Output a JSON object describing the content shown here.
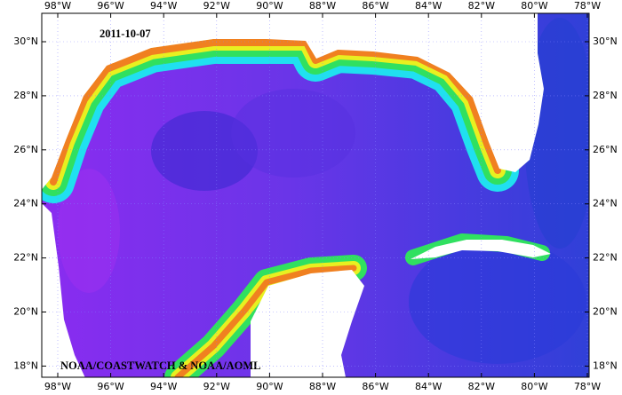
{
  "map": {
    "date": "2011-10-07",
    "credit": "NOAA/COASTWATCH & NOAA/AOML",
    "longitude_labels": [
      "98°W",
      "96°W",
      "94°W",
      "92°W",
      "90°W",
      "88°W",
      "86°W",
      "84°W",
      "82°W",
      "80°W",
      "78°W"
    ],
    "latitude_labels": [
      "30°N",
      "28°N",
      "26°N",
      "24°N",
      "22°N",
      "20°N",
      "18°N"
    ]
  }
}
